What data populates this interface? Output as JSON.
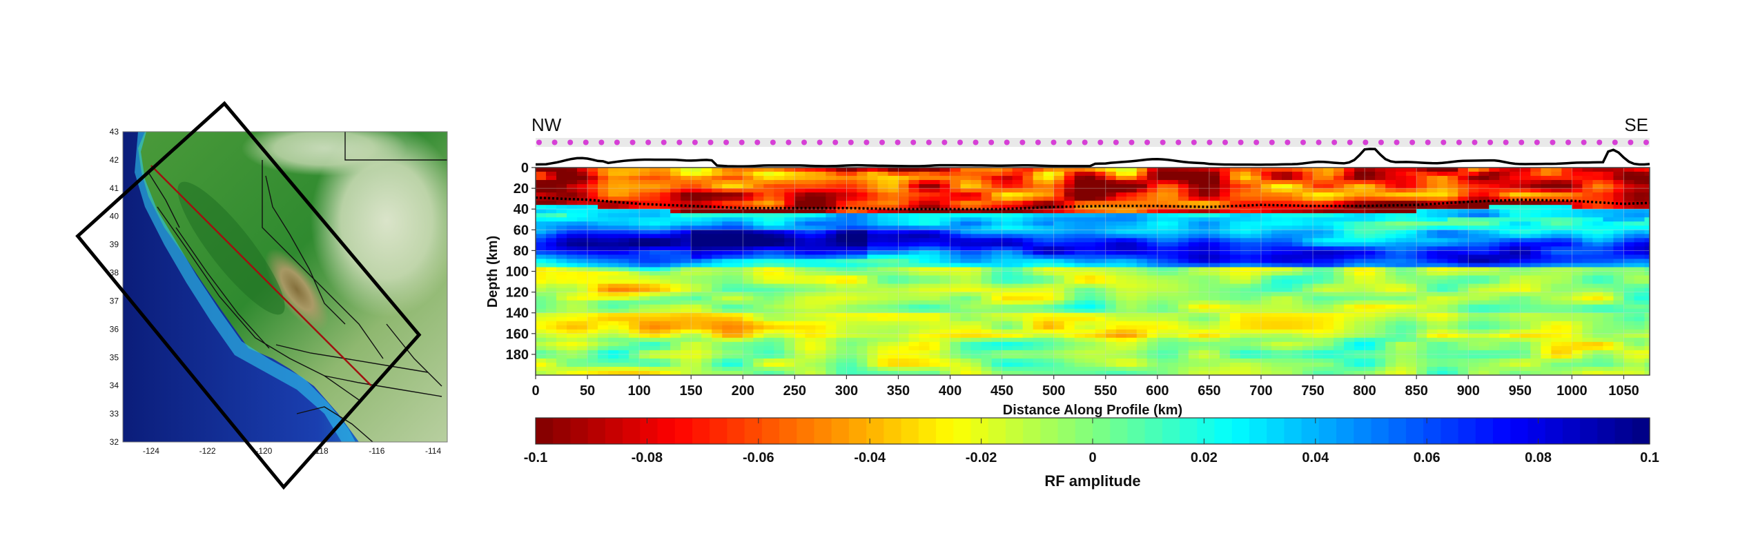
{
  "chart_data": [
    {
      "type": "map",
      "x_ticks": [
        "-124",
        "-122",
        "-120",
        "-118",
        "-116",
        "-114"
      ],
      "y_ticks": [
        "32",
        "33",
        "34",
        "35",
        "36",
        "37",
        "38",
        "39",
        "40",
        "41",
        "42",
        "43"
      ],
      "xlim": [
        -125,
        -113.5
      ],
      "ylim": [
        32,
        43
      ],
      "colors": {
        "ocean_deep": "#0a1a7a",
        "ocean_shallow": "#1fb8e8",
        "lowland": "#1f7a2a",
        "highland": "#c9d8b8",
        "profile_line": "#a01010",
        "box": "#000000"
      },
      "profile_line": [
        [
          -124,
          41.8
        ],
        [
          -116.2,
          34
        ]
      ],
      "box_corners": [
        [
          -121.4,
          44
        ],
        [
          -126.6,
          39.3
        ],
        [
          -119.3,
          30.4
        ],
        [
          -114.5,
          35.8
        ]
      ]
    },
    {
      "type": "heatmap",
      "xlabel": "Distance Along Profile (km)",
      "ylabel": "Depth (km)",
      "xlim": [
        0,
        1075
      ],
      "ylim": [
        0,
        200
      ],
      "x_ticks": [
        "0",
        "50",
        "100",
        "150",
        "200",
        "250",
        "300",
        "350",
        "400",
        "450",
        "500",
        "550",
        "600",
        "650",
        "700",
        "750",
        "800",
        "850",
        "900",
        "950",
        "1000",
        "1050"
      ],
      "y_ticks": [
        "0",
        "20",
        "40",
        "60",
        "80",
        "100",
        "120",
        "140",
        "160",
        "180"
      ],
      "end_labels": {
        "left": "NW",
        "right": "SE"
      },
      "moho_depth": [
        [
          0,
          29
        ],
        [
          50,
          31
        ],
        [
          100,
          35
        ],
        [
          150,
          37
        ],
        [
          200,
          39
        ],
        [
          250,
          39
        ],
        [
          300,
          39
        ],
        [
          350,
          40
        ],
        [
          400,
          40
        ],
        [
          450,
          40
        ],
        [
          500,
          38
        ],
        [
          550,
          37
        ],
        [
          600,
          37
        ],
        [
          650,
          38
        ],
        [
          700,
          36
        ],
        [
          750,
          37
        ],
        [
          800,
          37
        ],
        [
          850,
          36
        ],
        [
          900,
          33
        ],
        [
          950,
          31
        ],
        [
          1000,
          32
        ],
        [
          1050,
          35
        ],
        [
          1075,
          34
        ]
      ],
      "station_count": 72,
      "colors": {
        "station": "#d63fd6",
        "moho": "#000000",
        "topography": "#000000"
      }
    },
    {
      "type": "colorbar",
      "label": "RF amplitude",
      "range": [
        -0.1,
        0.1
      ],
      "tick_labels": [
        "-0.1",
        "-0.08",
        "-0.06",
        "-0.04",
        "-0.02",
        "0",
        "0.02",
        "0.04",
        "0.06",
        "0.08",
        "0.1"
      ],
      "colormap": "jet_reversed"
    }
  ]
}
